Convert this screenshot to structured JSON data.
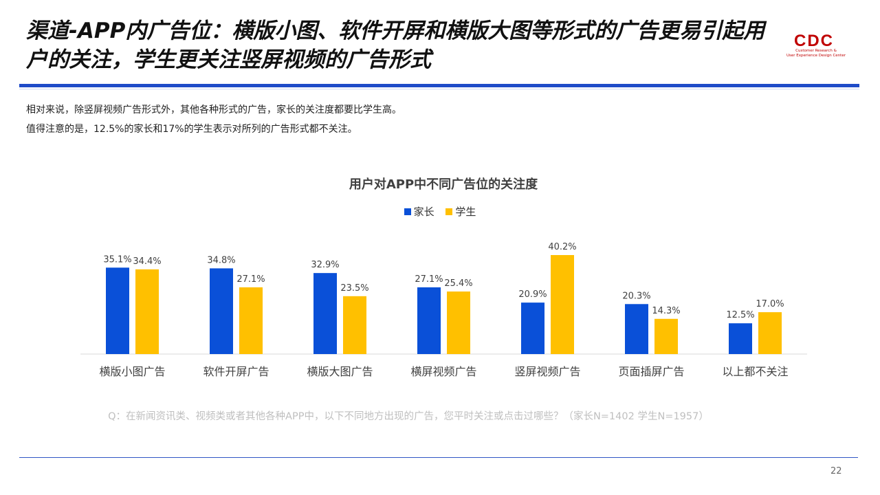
{
  "slide": {
    "title": "渠道-APP内广告位：横版小图、软件开屏和横版大图等形式的广告更易引起用户的关注，学生更关注竖屏视频的广告形式",
    "description": [
      "相对来说，除竖屏视频广告形式外，其他各种形式的广告，家长的关注度都要比学生高。",
      "值得注意的是，12.5%的家长和17%的学生表示对所列的广告形式都不关注。"
    ],
    "note": "Q：在新闻资讯类、视频类或者其他各种APP中，以下不同地方出现的广告，您平时关注或点击过哪些？（家长N=1402    学生N=1957）",
    "page_number": "22"
  },
  "logo": {
    "text": "CDC",
    "subtitle_line1": "Customer Research &",
    "subtitle_line2": "User Experience Design Center",
    "color": "#c00000"
  },
  "chart_data": {
    "type": "bar",
    "title": "用户对APP中不同广告位的关注度",
    "categories": [
      "横版小图广告",
      "软件开屏广告",
      "横版大图广告",
      "横屏视频广告",
      "竖屏视频广告",
      "页面插屏广告",
      "以上都不关注"
    ],
    "series": [
      {
        "name": "家长",
        "color": "#0a50d8",
        "values": [
          35.1,
          34.8,
          32.9,
          27.1,
          20.9,
          20.3,
          12.5
        ]
      },
      {
        "name": "学生",
        "color": "#ffc000",
        "values": [
          34.4,
          27.1,
          23.5,
          25.4,
          40.2,
          14.3,
          17.0
        ]
      }
    ],
    "value_suffix": "%",
    "xlabel": "",
    "ylabel": "",
    "ylim": [
      0,
      40.2
    ],
    "grid": false,
    "legend_position": "top-center"
  }
}
